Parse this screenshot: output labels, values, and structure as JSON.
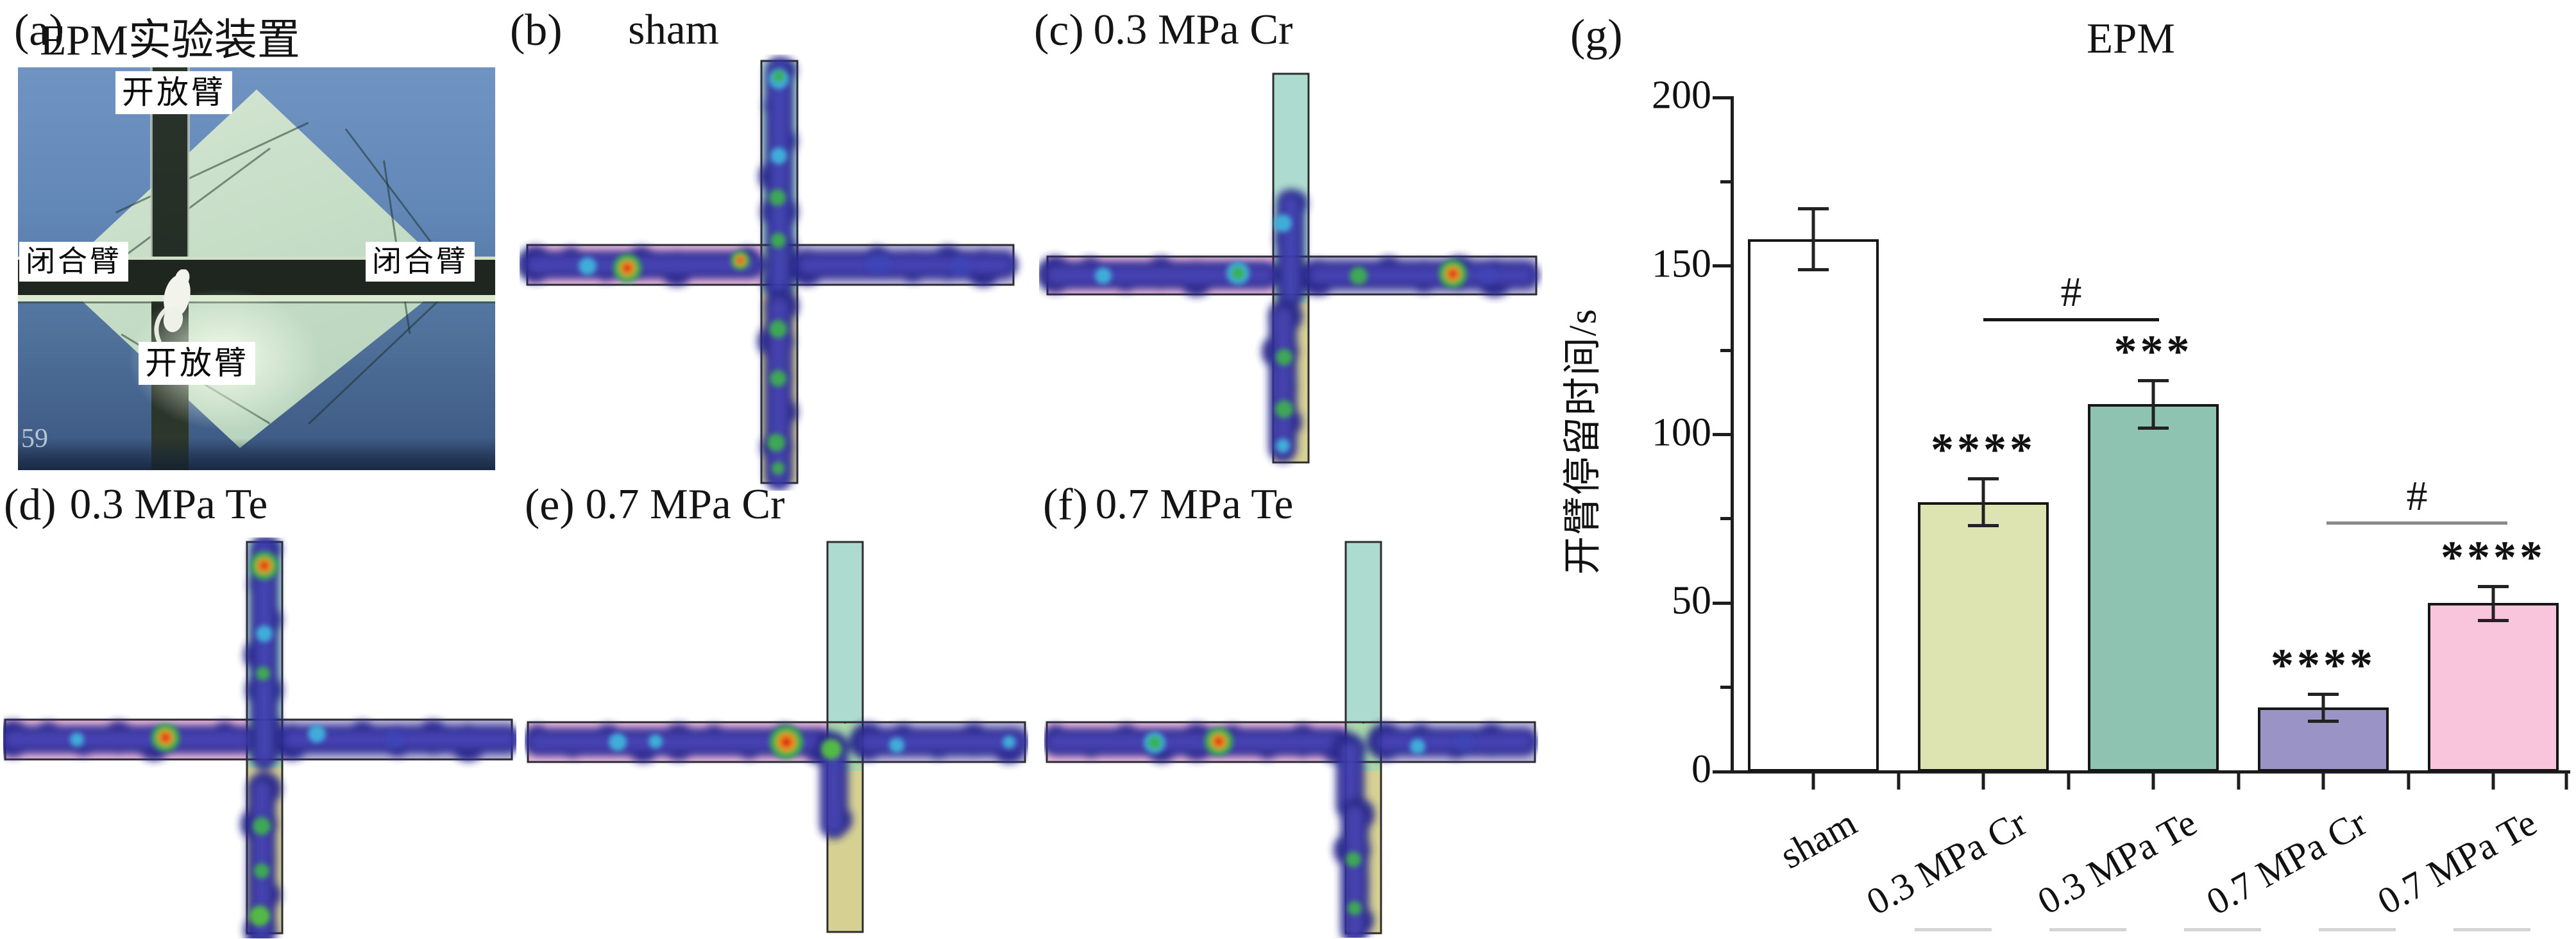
{
  "figure": {
    "panels": [
      {
        "id": "a",
        "label": "(a)",
        "title": "EPM实验装置",
        "photo": {
          "arm_labels": {
            "top": "开放臂",
            "left": "闭合臂",
            "right": "闭合臂",
            "bottom": "开放臂"
          },
          "watermark": "59"
        }
      },
      {
        "id": "b",
        "label": "(b)",
        "title": "sham",
        "heat": {
          "runs": [
            [
              405,
              25,
              405,
              368
            ],
            [
              25,
              328,
              360,
              328
            ],
            [
              448,
              328,
              755,
              328
            ],
            [
              404,
              392,
              404,
              658
            ]
          ],
          "spots": [
            [
              "cyan",
              404,
              38,
              16
            ],
            [
              "green",
              404,
              34,
              10
            ],
            [
              "cyan",
              404,
              158,
              13
            ],
            [
              "green",
              402,
              223,
              13
            ],
            [
              "green",
              403,
              290,
              12
            ],
            [
              "cyan",
              106,
              330,
              14
            ],
            [
              "hot-m",
              168,
              333,
              0
            ],
            [
              "hot-s",
              344,
              321,
              0
            ],
            [
              "green",
              403,
              428,
              14
            ],
            [
              "green",
              403,
              505,
              13
            ],
            [
              "green",
              400,
              605,
              14
            ],
            [
              "green",
              403,
              645,
              10
            ],
            [
              "blue",
              560,
              326,
              18
            ],
            [
              "blue",
              688,
              330,
              16
            ]
          ]
        }
      },
      {
        "id": "c",
        "label": "(c)",
        "title": "0.3 MPa Cr",
        "heat": {
          "runs": [
            [
              392,
              212,
              392,
              352
            ],
            [
              25,
              324,
              352,
              324
            ],
            [
              435,
              324,
              758,
              324
            ],
            [
              380,
              388,
              380,
              594
            ]
          ],
          "spots": [
            [
              "cyan",
              380,
              243,
              14
            ],
            [
              "cyan",
              100,
              325,
              13
            ],
            [
              "cyan",
              310,
              321,
              18
            ],
            [
              "green",
              310,
              321,
              11
            ],
            [
              "green",
              498,
              325,
              14
            ],
            [
              "hot-m",
              645,
              322,
              0
            ],
            [
              "green",
              382,
              452,
              13
            ],
            [
              "green",
              382,
              533,
              14
            ],
            [
              "cyan",
              380,
              590,
              11
            ],
            [
              "blue",
              700,
              324,
              14
            ]
          ]
        }
      },
      {
        "id": "d",
        "label": "(d)",
        "title": "0.3 MPa Te",
        "heat": {
          "runs": [
            [
              407,
              18,
              407,
              340
            ],
            [
              15,
              315,
              372,
              315
            ],
            [
              450,
              315,
              786,
              315
            ],
            [
              403,
              392,
              403,
              612
            ]
          ],
          "spots": [
            [
              "hot-m",
              407,
              44,
              0
            ],
            [
              "cyan",
              407,
              150,
              13
            ],
            [
              "green",
              405,
              212,
              11
            ],
            [
              "hot-m",
              253,
              312,
              0
            ],
            [
              "cyan",
              115,
              315,
              11
            ],
            [
              "cyan",
              489,
              306,
              14
            ],
            [
              "green",
              403,
              450,
              14
            ],
            [
              "green",
              403,
              520,
              12
            ],
            [
              "lime",
              400,
              590,
              16
            ],
            [
              "blue",
              610,
              315,
              15
            ]
          ]
        }
      },
      {
        "id": "e",
        "label": "(e)",
        "title": "0.7 MPa Cr",
        "heat": {
          "runs": [
            [
              20,
              319,
              462,
              319
            ],
            [
              535,
              319,
              765,
              319
            ],
            [
              482,
              330,
              482,
              448
            ]
          ],
          "spots": [
            [
              "cyan",
              145,
              319,
              14
            ],
            [
              "cyan",
              204,
              318,
              11
            ],
            [
              "hot-l",
              408,
              319,
              0
            ],
            [
              "lime",
              478,
              330,
              16
            ],
            [
              "cyan",
              580,
              324,
              12
            ],
            [
              "cyan",
              755,
              319,
              10
            ]
          ]
        }
      },
      {
        "id": "f",
        "label": "(f)",
        "title": "0.7 MPa Te",
        "heat": {
          "runs": [
            [
              18,
              319,
              460,
              319
            ],
            [
              532,
              319,
              748,
              319
            ],
            [
              477,
              332,
              477,
              420
            ],
            [
              484,
              432,
              484,
              612
            ]
          ],
          "spots": [
            [
              "cyan",
              172,
              320,
              17
            ],
            [
              "green",
              172,
              320,
              11
            ],
            [
              "hot-m",
              272,
              318,
              0
            ],
            [
              "cyan",
              582,
              326,
              12
            ],
            [
              "green",
              482,
              502,
              12
            ],
            [
              "green",
              484,
              578,
              11
            ],
            [
              "blue",
              655,
              320,
              14
            ]
          ]
        }
      },
      {
        "id": "g",
        "label": "(g)",
        "title": "EPM"
      }
    ]
  },
  "chart_data": {
    "type": "bar",
    "title": "EPM",
    "xlabel": "",
    "ylabel": "开臂停留时间/s",
    "categories": [
      "sham",
      "0.3 MPa Cr",
      "0.3 MPa Te",
      "0.7 MPa Cr",
      "0.7 MPa Te"
    ],
    "values": [
      158,
      80,
      109,
      19,
      50
    ],
    "errors": [
      9,
      7,
      7,
      4,
      5
    ],
    "significance_vs_sham": [
      "",
      "****",
      "***",
      "****",
      "****"
    ],
    "comparisons": [
      {
        "between": [
          "0.3 MPa Cr",
          "0.3 MPa Te"
        ],
        "label": "#"
      },
      {
        "between": [
          "0.7 MPa Cr",
          "0.7 MPa Te"
        ],
        "label": "#"
      }
    ],
    "ylim": [
      0,
      200
    ],
    "yticks": [
      0,
      50,
      100,
      150,
      200
    ],
    "grid": false,
    "legend": "none",
    "bar_colors": [
      "#ffffff",
      "#dde4b2",
      "#8ec3b1",
      "#9a93c6",
      "#f8c5dc"
    ],
    "bar_border": "#161616"
  },
  "palette": {
    "maze": {
      "open_top": "#aedbd0",
      "open_bottom": "#d6d193",
      "closed_left": "#eebbdc",
      "closed_right": "#c0badf",
      "junction": "#a9d9a9",
      "border": "#2e2e2e"
    },
    "heat": {
      "base_outer": "#28268c",
      "base_inner": "#403db0",
      "cyan": "#3fb6dc",
      "green": "#3cb14e",
      "lime": "#55c43c",
      "blue": "#3a49bc",
      "orange": "#f0920c",
      "red": "#da251d"
    }
  }
}
